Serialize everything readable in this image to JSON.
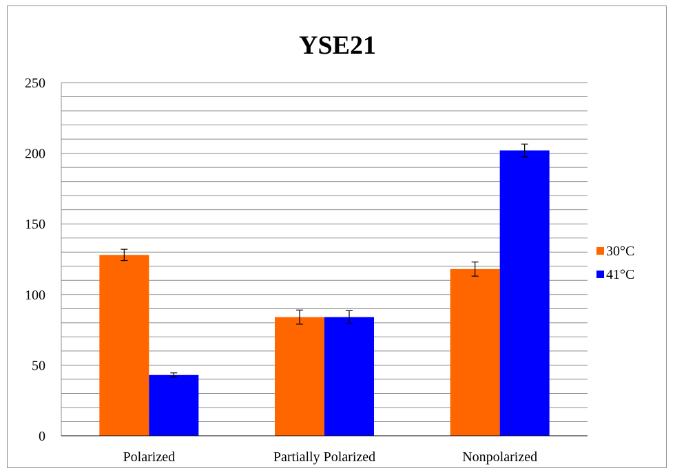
{
  "chart_data": {
    "type": "bar",
    "title": "YSE21",
    "xlabel": "",
    "ylabel": "",
    "categories": [
      "Polarized",
      "Partially Polarized",
      "Nonpolarized"
    ],
    "series": [
      {
        "name": "30°C",
        "color": "#ff6600",
        "values": [
          128,
          84,
          118
        ],
        "errors": [
          4,
          5,
          5
        ]
      },
      {
        "name": "41°C",
        "color": "#0000ff",
        "values": [
          43,
          84,
          202
        ],
        "errors": [
          1.5,
          4.5,
          4.5
        ]
      }
    ],
    "ylim": [
      0,
      250
    ],
    "yticks": [
      "0",
      "50",
      "100",
      "150",
      "200",
      "250"
    ],
    "minor_grid_step": 10,
    "grid": true,
    "legend_position": "right"
  }
}
